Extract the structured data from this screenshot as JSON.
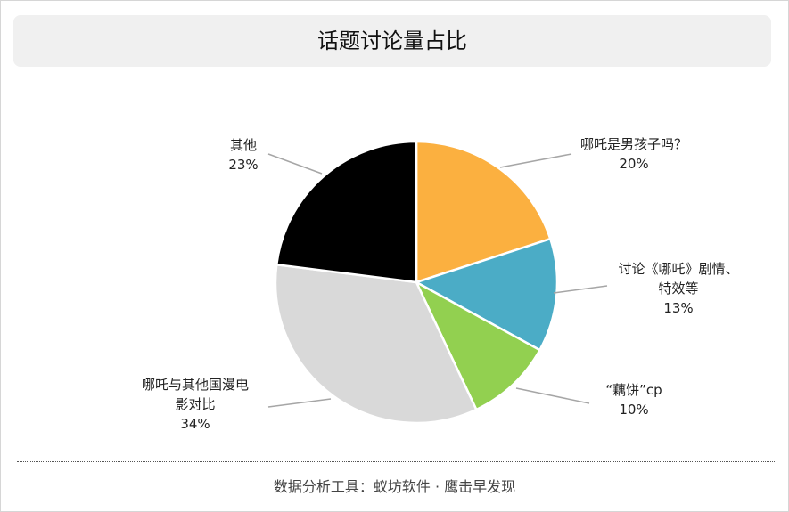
{
  "chart_data": {
    "type": "pie",
    "title": "话题讨论量占比",
    "slices": [
      {
        "label": "哪吒是男孩子吗？",
        "value": 20,
        "pct_text": "20%",
        "color": "#FBB040"
      },
      {
        "label": "讨论《哪吒》剧情、特效等",
        "value": 13,
        "pct_text": "13%",
        "color": "#4BACC6"
      },
      {
        "label": "“藕饼”cp",
        "value": 10,
        "pct_text": "10%",
        "color": "#92D050"
      },
      {
        "label": "哪吒与其他国漫电影对比",
        "value": 34,
        "pct_text": "34%",
        "color": "#D9D9D9"
      },
      {
        "label": "其他",
        "value": 23,
        "pct_text": "23%",
        "color": "#000000"
      }
    ],
    "start_angle_deg": 0,
    "direction": "clockwise"
  },
  "footer": "数据分析工具：蚁坊软件 · 鹰击早发现"
}
